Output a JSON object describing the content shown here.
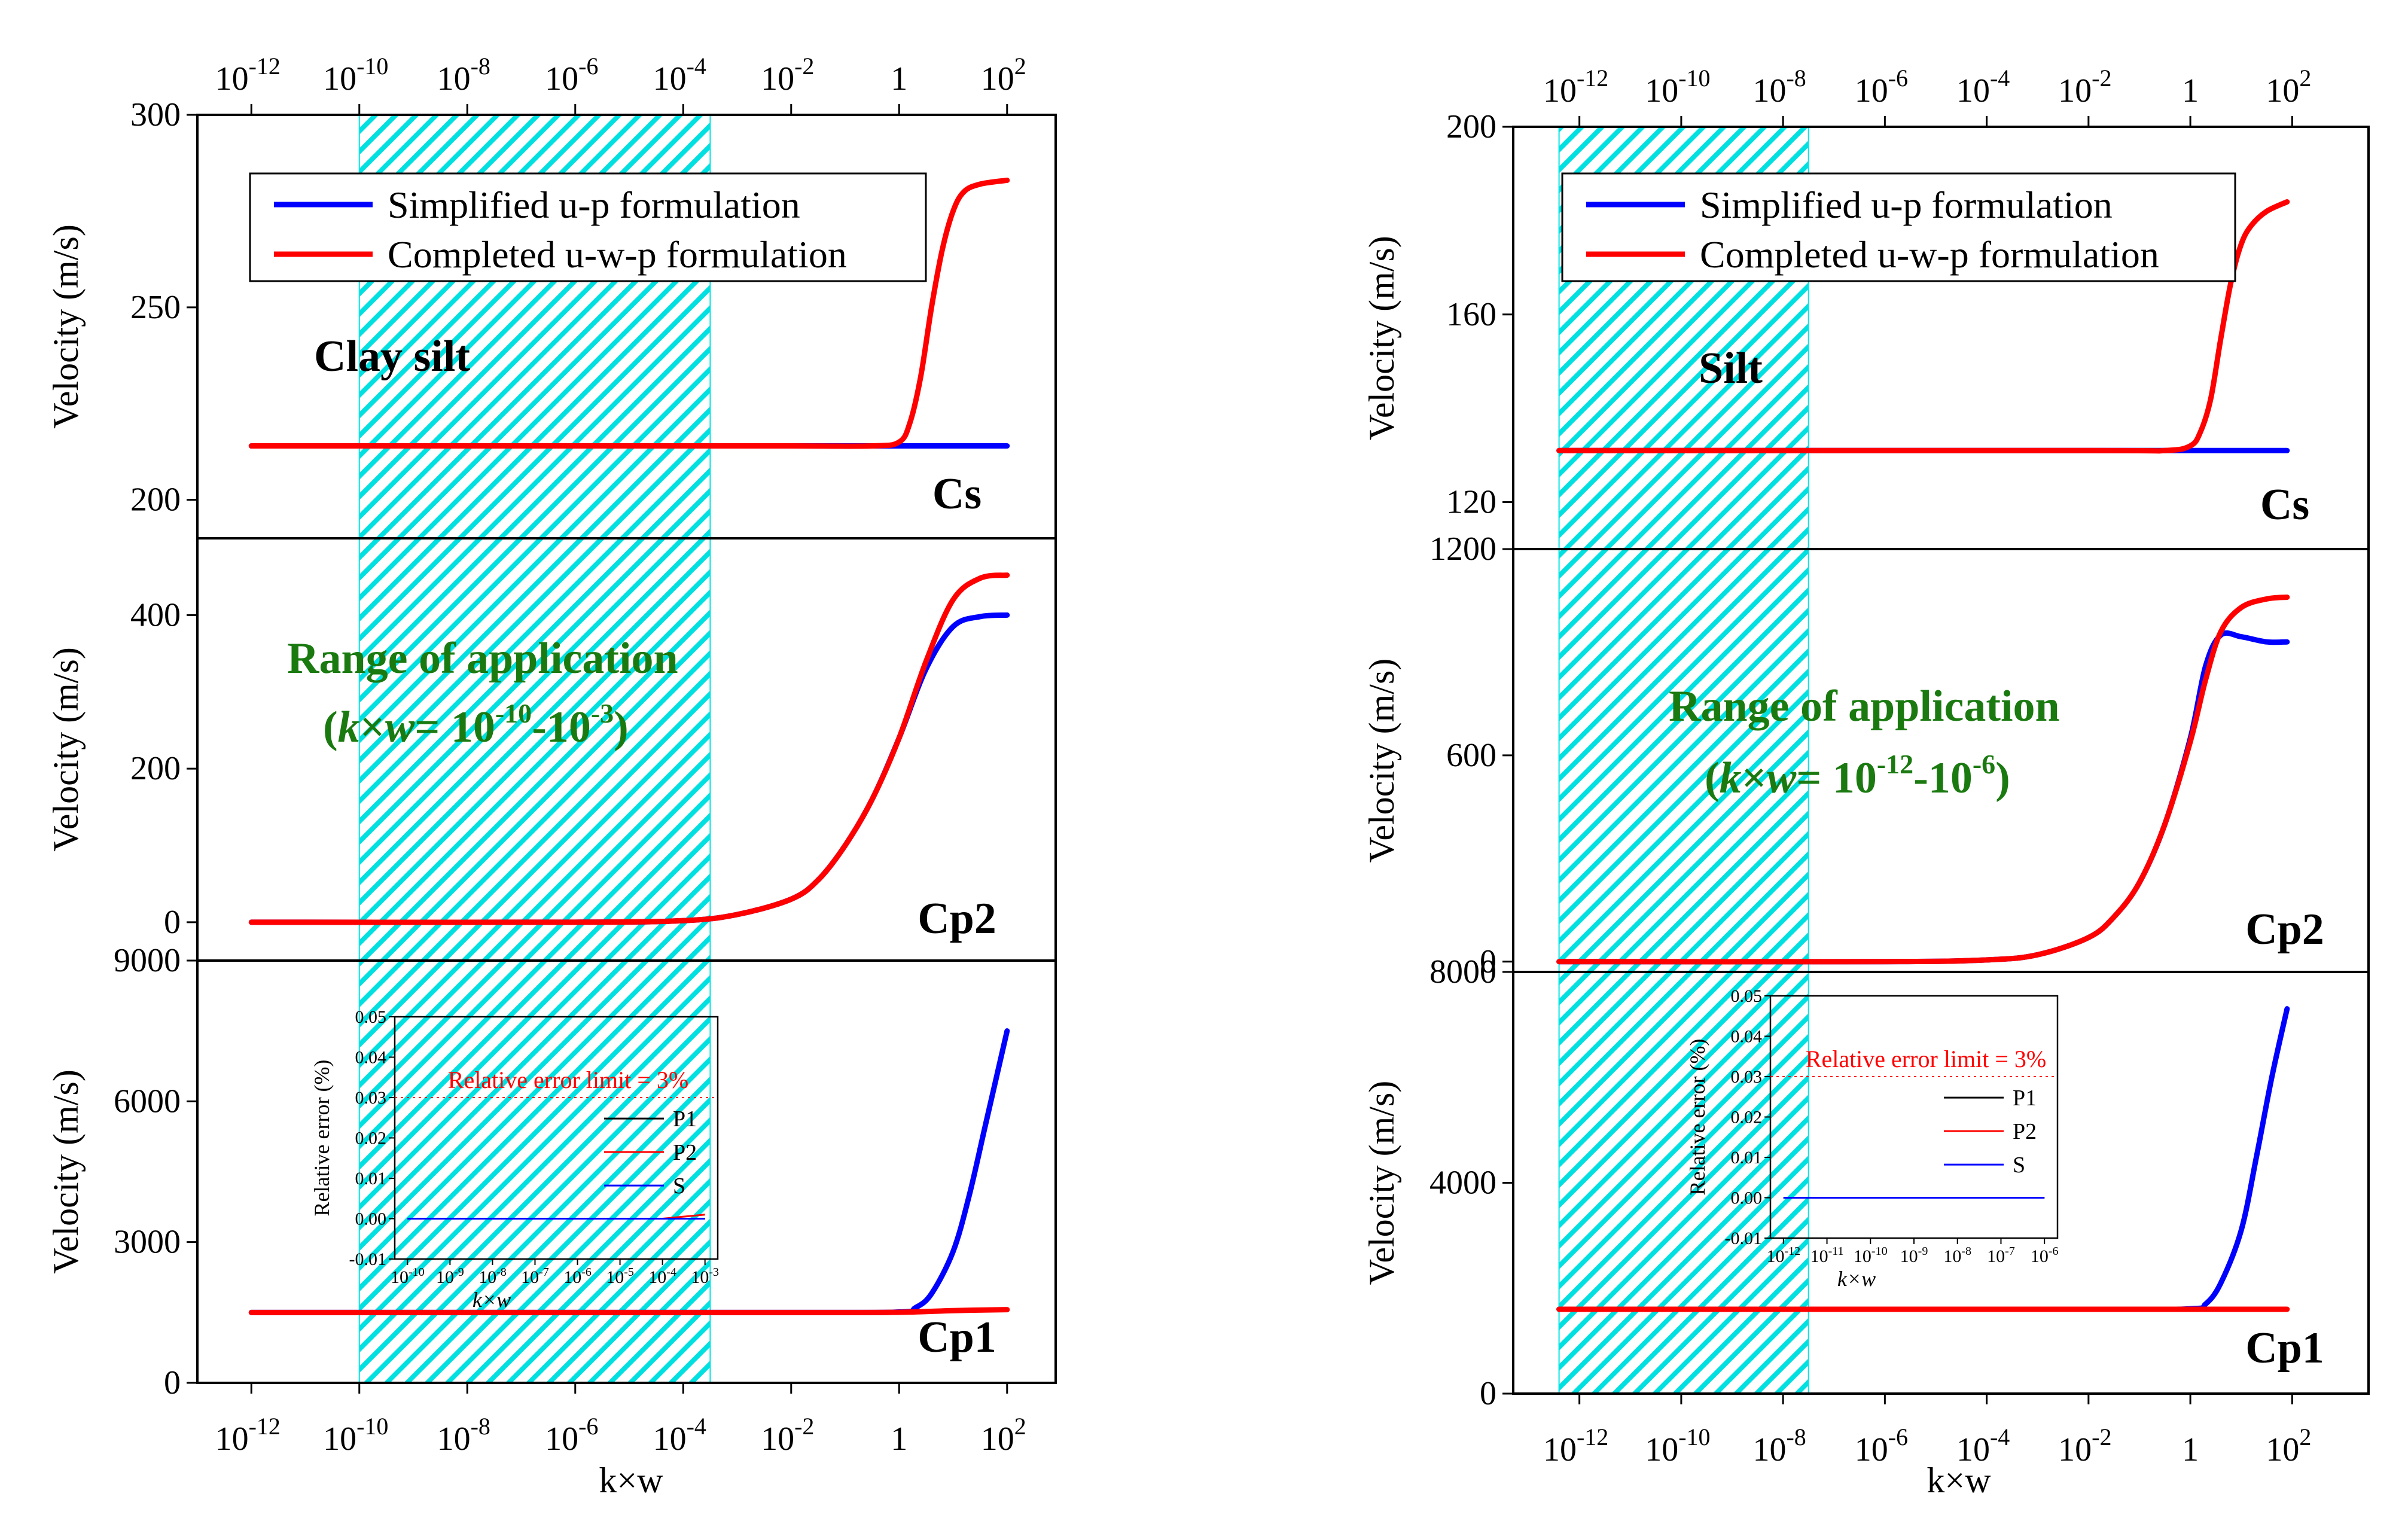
{
  "figure": {
    "panels_left": {
      "soil_label": "Clay silt",
      "range_text": "Range of application",
      "range_expr": {
        "lead": "(",
        "k": "k",
        "times": "×",
        "w": "w",
        "eq": "= 10",
        "exp1": "-10",
        "mid": "-10",
        "exp2": "-3",
        "tail": ")"
      },
      "x_title": "k×w"
    },
    "panels_right": {
      "soil_label": "Silt",
      "range_text": "Range of application",
      "range_expr": {
        "lead": "(",
        "k": "k",
        "times": "×",
        "w": "w",
        "eq": "= 10",
        "exp1": "-12",
        "mid": "-10",
        "exp2": "-6",
        "tail": ")"
      },
      "x_title": "k×w"
    },
    "legend": {
      "simplified": "Simplified u-p formulation",
      "completed": "Completed u-w-p formulation"
    },
    "y_title": "Velocity (m/s)",
    "inset": {
      "y_title": "Relative error (%)",
      "x_title": "k×w",
      "limit_text": "Relative error limit = 3%",
      "legend": [
        "P1",
        "P2",
        "S"
      ]
    },
    "colors": {
      "simplified": "#0000ff",
      "completed": "#ff0000",
      "hatch": "#00e5e5",
      "range_text": "#1a7a10"
    }
  },
  "chart_data": [
    {
      "type": "line",
      "id": "left-Cs",
      "panel_label": "Cs",
      "title": "",
      "xlabel": "k×w",
      "ylabel": "Velocity (m/s)",
      "xscale": "log",
      "xlim_exp": [
        -13.0,
        2.9
      ],
      "ylim": [
        190,
        300
      ],
      "yticks": [
        200,
        250,
        300
      ],
      "shaded_range_exp": [
        -10,
        -3.5
      ],
      "series": [
        {
          "name": "Simplified u-p formulation",
          "x_exp": [
            -12,
            -4,
            -2,
            0,
            0.3,
            0.6,
            1,
            1.5,
            2
          ],
          "values": [
            214,
            214,
            214,
            214,
            214,
            214,
            214,
            214,
            214
          ]
        },
        {
          "name": "Completed u-w-p formulation",
          "x_exp": [
            -12,
            -4,
            -2,
            -0.5,
            0,
            0.2,
            0.4,
            0.6,
            0.8,
            1.0,
            1.2,
            1.5,
            2
          ],
          "values": [
            214,
            214,
            214,
            214,
            215,
            220,
            232,
            250,
            265,
            275,
            280,
            282,
            283
          ]
        }
      ]
    },
    {
      "type": "line",
      "id": "left-Cp2",
      "panel_label": "Cp2",
      "title": "",
      "xlabel": "k×w",
      "ylabel": "Velocity (m/s)",
      "xscale": "log",
      "xlim_exp": [
        -13.0,
        2.9
      ],
      "ylim": [
        -50,
        500
      ],
      "yticks": [
        0,
        200,
        400
      ],
      "shaded_range_exp": [
        -10,
        -3.5
      ],
      "series": [
        {
          "name": "Simplified u-p formulation",
          "x_exp": [
            -12,
            -6,
            -4,
            -3,
            -2,
            -1.5,
            -1,
            -0.5,
            0,
            0.5,
            1,
            1.5,
            2
          ],
          "values": [
            0,
            0,
            2,
            10,
            30,
            55,
            100,
            160,
            240,
            330,
            385,
            398,
            400
          ]
        },
        {
          "name": "Completed u-w-p formulation",
          "x_exp": [
            -12,
            -6,
            -4,
            -3,
            -2,
            -1.5,
            -1,
            -0.5,
            0,
            0.5,
            1,
            1.5,
            2
          ],
          "values": [
            0,
            0,
            2,
            10,
            30,
            55,
            100,
            160,
            240,
            340,
            420,
            448,
            452
          ]
        }
      ]
    },
    {
      "type": "line",
      "id": "left-Cp1",
      "panel_label": "Cp1",
      "title": "",
      "xlabel": "k×w",
      "ylabel": "Velocity (m/s)",
      "xscale": "log",
      "xlim_exp": [
        -13.0,
        2.9
      ],
      "ylim": [
        0,
        9000
      ],
      "yticks": [
        0,
        3000,
        6000,
        9000
      ],
      "xticks_exp": [
        -12,
        -10,
        -8,
        -6,
        -4,
        -2,
        0,
        2
      ],
      "shaded_range_exp": [
        -10,
        -3.5
      ],
      "series": [
        {
          "name": "Simplified u-p formulation",
          "x_exp": [
            -12,
            -2,
            0,
            0.3,
            0.6,
            1,
            1.3,
            1.6,
            2
          ],
          "values": [
            1500,
            1500,
            1510,
            1600,
            1900,
            2800,
            4000,
            5500,
            7500
          ]
        },
        {
          "name": "Completed u-w-p formulation",
          "x_exp": [
            -12,
            -2,
            0,
            1,
            2
          ],
          "values": [
            1500,
            1500,
            1505,
            1540,
            1560
          ]
        }
      ],
      "inset": {
        "xticks_exp": [
          -10,
          -9,
          -8,
          -7,
          -6,
          -5,
          -4,
          -3
        ],
        "yticks": [
          -0.01,
          0.0,
          0.01,
          0.02,
          0.03,
          0.04,
          0.05
        ],
        "ylim": [
          -0.01,
          0.05
        ],
        "limit": 0.03,
        "series": [
          {
            "name": "P1",
            "x_exp": [
              -10,
              -3
            ],
            "values": [
              0.0,
              0.0
            ]
          },
          {
            "name": "P2",
            "x_exp": [
              -10,
              -5,
              -4,
              -3
            ],
            "values": [
              0.0,
              0.0,
              0.0,
              0.001
            ]
          },
          {
            "name": "S",
            "x_exp": [
              -10,
              -3
            ],
            "values": [
              0.0,
              0.0
            ]
          }
        ]
      }
    },
    {
      "type": "line",
      "id": "right-Cs",
      "panel_label": "Cs",
      "title": "",
      "xlabel": "k×w",
      "ylabel": "Velocity (m/s)",
      "xscale": "log",
      "xlim_exp": [
        -13.3,
        3.5
      ],
      "ylim": [
        110,
        200
      ],
      "yticks": [
        120,
        160,
        200
      ],
      "shaded_range_exp": [
        -12.4,
        -7.5
      ],
      "series": [
        {
          "name": "Simplified u-p formulation",
          "x_exp": [
            -12.4,
            -2,
            0,
            0.5,
            1,
            1.5,
            1.9
          ],
          "values": [
            131,
            131,
            131,
            131,
            131,
            131,
            131
          ]
        },
        {
          "name": "Completed u-w-p formulation",
          "x_exp": [
            -12.4,
            -2,
            -0.5,
            0,
            0.2,
            0.4,
            0.6,
            0.8,
            1.0,
            1.2,
            1.5,
            1.9
          ],
          "values": [
            131,
            131,
            131,
            132,
            135,
            142,
            155,
            167,
            175,
            179,
            182,
            184
          ]
        }
      ]
    },
    {
      "type": "line",
      "id": "right-Cp2",
      "panel_label": "Cp2",
      "title": "",
      "xlabel": "k×w",
      "ylabel": "Velocity (m/s)",
      "xscale": "log",
      "xlim_exp": [
        -13.3,
        3.5
      ],
      "ylim": [
        -30,
        1200
      ],
      "yticks": [
        0,
        600,
        1200
      ],
      "shaded_range_exp": [
        -12.4,
        -7.5
      ],
      "series": [
        {
          "name": "Simplified u-p formulation",
          "x_exp": [
            -12.4,
            -6,
            -4,
            -3,
            -2,
            -1.5,
            -1,
            -0.5,
            0,
            0.3,
            0.6,
            1,
            1.5,
            1.9
          ],
          "values": [
            0,
            0,
            5,
            20,
            70,
            130,
            230,
            400,
            650,
            860,
            950,
            945,
            930,
            930
          ]
        },
        {
          "name": "Completed u-w-p formulation",
          "x_exp": [
            -12.4,
            -6,
            -4,
            -3,
            -2,
            -1.5,
            -1,
            -0.5,
            0,
            0.3,
            0.6,
            1,
            1.5,
            1.9
          ],
          "values": [
            0,
            0,
            5,
            20,
            70,
            130,
            230,
            400,
            640,
            820,
            960,
            1030,
            1055,
            1060
          ]
        }
      ]
    },
    {
      "type": "line",
      "id": "right-Cp1",
      "panel_label": "Cp1",
      "title": "",
      "xlabel": "k×w",
      "ylabel": "Velocity (m/s)",
      "xscale": "log",
      "xlim_exp": [
        -13.3,
        3.5
      ],
      "ylim": [
        0,
        8000
      ],
      "yticks": [
        0,
        4000,
        8000
      ],
      "xticks_exp": [
        -12,
        -10,
        -8,
        -6,
        -4,
        -2,
        0,
        2
      ],
      "shaded_range_exp": [
        -12.4,
        -7.5
      ],
      "series": [
        {
          "name": "Simplified u-p formulation",
          "x_exp": [
            -12.4,
            -2,
            0,
            0.3,
            0.6,
            1,
            1.3,
            1.6,
            1.9
          ],
          "values": [
            1600,
            1600,
            1610,
            1700,
            2100,
            3100,
            4500,
            6000,
            7300
          ]
        },
        {
          "name": "Completed u-w-p formulation",
          "x_exp": [
            -12.4,
            -2,
            0,
            1,
            1.9
          ],
          "values": [
            1600,
            1600,
            1600,
            1600,
            1600
          ]
        }
      ],
      "inset": {
        "xticks_exp": [
          -12,
          -11,
          -10,
          -9,
          -8,
          -7,
          -6
        ],
        "yticks": [
          -0.01,
          0.0,
          0.01,
          0.02,
          0.03,
          0.04,
          0.05
        ],
        "ylim": [
          -0.01,
          0.05
        ],
        "limit": 0.03,
        "series": [
          {
            "name": "P1",
            "x_exp": [
              -12,
              -6
            ],
            "values": [
              0.0,
              0.0
            ]
          },
          {
            "name": "P2",
            "x_exp": [
              -12,
              -6
            ],
            "values": [
              0.0,
              0.0
            ]
          },
          {
            "name": "S",
            "x_exp": [
              -12,
              -6
            ],
            "values": [
              0.0,
              0.0
            ]
          }
        ]
      }
    }
  ]
}
